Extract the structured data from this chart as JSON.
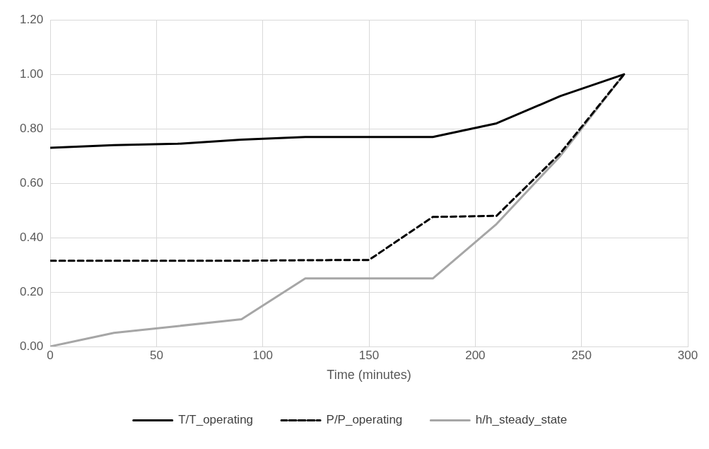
{
  "chart_data": {
    "type": "line",
    "xlabel": "Time (minutes)",
    "x": [
      0,
      30,
      60,
      90,
      120,
      150,
      180,
      210,
      240,
      270
    ],
    "series": [
      {
        "name": "T/T_operating",
        "color": "#000000",
        "line_style": "solid",
        "values": [
          0.73,
          0.74,
          0.745,
          0.76,
          0.77,
          0.77,
          0.77,
          0.82,
          0.92,
          1.0
        ]
      },
      {
        "name": "P/P_operating",
        "color": "#000000",
        "line_style": "dashed",
        "values": [
          0.315,
          0.315,
          0.315,
          0.315,
          0.317,
          0.318,
          0.476,
          0.48,
          0.71,
          1.0
        ]
      },
      {
        "name": "h/h_steady_state",
        "color": "#a6a6a6",
        "line_style": "solid",
        "values": [
          0,
          0.05,
          0.075,
          0.1,
          0.25,
          0.25,
          0.25,
          0.45,
          0.7,
          1.0
        ]
      }
    ],
    "xlim": [
      0,
      300
    ],
    "xticks": [
      0,
      50,
      100,
      150,
      200,
      250,
      300
    ],
    "ylim": [
      0,
      1.2
    ],
    "yticks": [
      {
        "value": 0,
        "label": "0.00"
      },
      {
        "value": 0.2,
        "label": "0.20"
      },
      {
        "value": 0.4,
        "label": "0.40"
      },
      {
        "value": 0.6,
        "label": "0.60"
      },
      {
        "value": 0.8,
        "label": "0.80"
      },
      {
        "value": 1.0,
        "label": "1.00"
      },
      {
        "value": 1.2,
        "label": "1.20"
      }
    ],
    "grid": true,
    "legend": "bottom",
    "marker": "none"
  }
}
